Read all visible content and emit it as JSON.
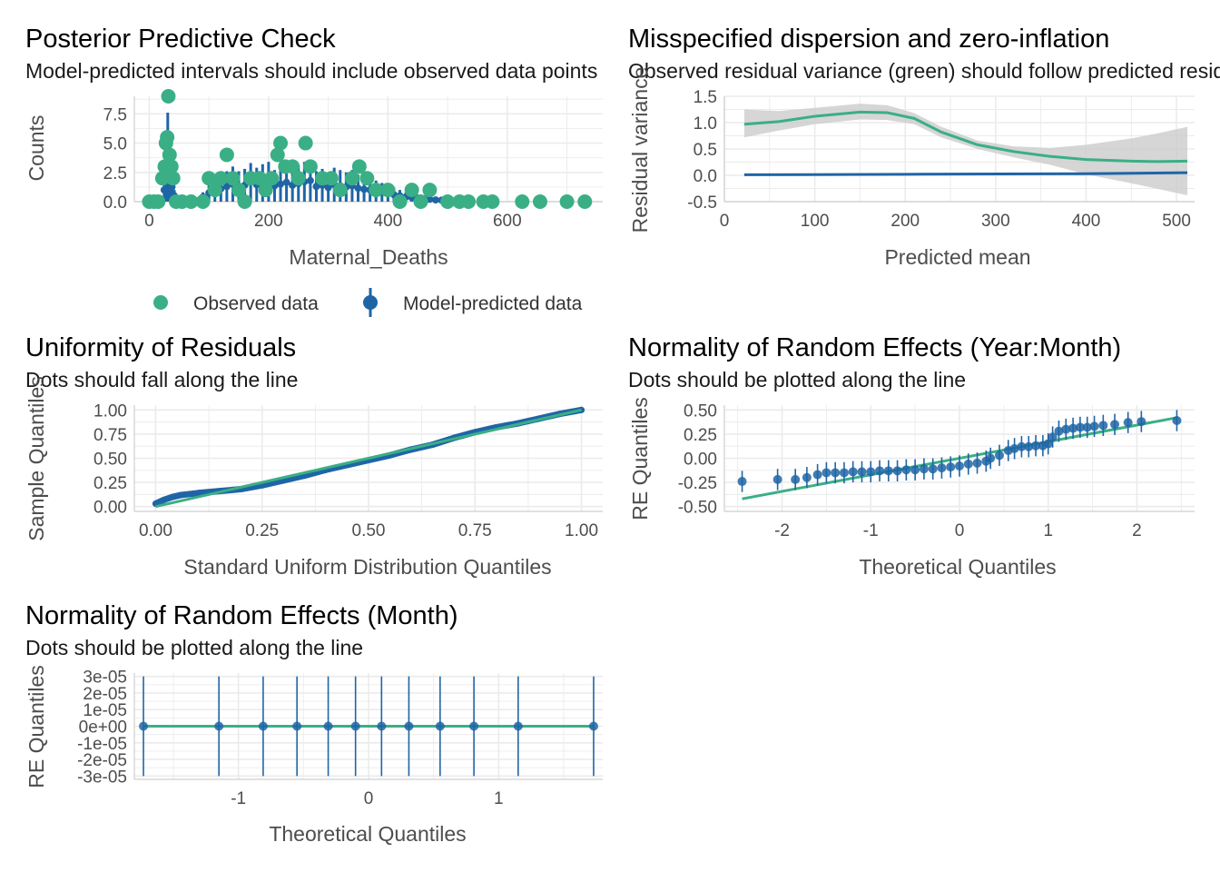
{
  "colors": {
    "observed": "#3aaf85",
    "predicted": "#1f65a6",
    "band": "#cccccc",
    "grid": "#ebebeb"
  },
  "panels": {
    "ppc": {
      "title": "Posterior Predictive Check",
      "subtitle": "Model-predicted intervals should include observed data points",
      "xlabel": "Maternal_Deaths",
      "ylabel": "Counts",
      "legend": {
        "observed": "Observed data",
        "predicted": "Model-predicted data"
      }
    },
    "disp": {
      "title": "Misspecified dispersion and zero-inflation",
      "subtitle": "Observed residual variance (green) should follow predicted residual variance (blue)",
      "xlabel": "Predicted mean",
      "ylabel": "Residual variance"
    },
    "unif": {
      "title": "Uniformity of Residuals",
      "subtitle": "Dots should fall along the line",
      "xlabel": "Standard Uniform Distribution Quantiles",
      "ylabel": "Sample Quantiles"
    },
    "re_ym": {
      "title": "Normality of Random Effects (Year:Month)",
      "subtitle": "Dots should be plotted along the line",
      "xlabel": "Theoretical Quantiles",
      "ylabel": "RE Quantiles"
    },
    "re_m": {
      "title": "Normality of Random Effects (Month)",
      "subtitle": "Dots should be plotted along the line",
      "xlabel": "Theoretical Quantiles",
      "ylabel": "RE Quantiles"
    }
  },
  "chart_data": [
    {
      "id": "ppc",
      "type": "scatter",
      "xlim": [
        -25,
        760
      ],
      "ylim": [
        0,
        9.0
      ],
      "xticks": [
        "0",
        "200",
        "400",
        "600"
      ],
      "xtick_values": [
        0,
        200,
        400,
        600
      ],
      "yticks": [
        "0.0",
        "2.5",
        "5.0",
        "7.5"
      ],
      "ytick_values": [
        0,
        2.5,
        5.0,
        7.5
      ],
      "legend_position": "bottom",
      "observed": [
        [
          0,
          0
        ],
        [
          8,
          0
        ],
        [
          15,
          0
        ],
        [
          22,
          2
        ],
        [
          26,
          3
        ],
        [
          28,
          5
        ],
        [
          30,
          5.5
        ],
        [
          32,
          9
        ],
        [
          34,
          4
        ],
        [
          37,
          3
        ],
        [
          40,
          2
        ],
        [
          45,
          0
        ],
        [
          55,
          0
        ],
        [
          70,
          0
        ],
        [
          90,
          0
        ],
        [
          100,
          2
        ],
        [
          110,
          1
        ],
        [
          120,
          2
        ],
        [
          130,
          4
        ],
        [
          140,
          2
        ],
        [
          150,
          1
        ],
        [
          160,
          0
        ],
        [
          170,
          2
        ],
        [
          185,
          2
        ],
        [
          195,
          1
        ],
        [
          205,
          2
        ],
        [
          215,
          4
        ],
        [
          220,
          5
        ],
        [
          228,
          3
        ],
        [
          240,
          3
        ],
        [
          250,
          2
        ],
        [
          262,
          5
        ],
        [
          270,
          3
        ],
        [
          290,
          2
        ],
        [
          305,
          2
        ],
        [
          320,
          1
        ],
        [
          340,
          2
        ],
        [
          352,
          3
        ],
        [
          365,
          2
        ],
        [
          380,
          1
        ],
        [
          400,
          1
        ],
        [
          420,
          0
        ],
        [
          440,
          1
        ],
        [
          455,
          0
        ],
        [
          470,
          1
        ],
        [
          500,
          0
        ],
        [
          520,
          0
        ],
        [
          535,
          0
        ],
        [
          560,
          0
        ],
        [
          575,
          0
        ],
        [
          625,
          0
        ],
        [
          655,
          0
        ],
        [
          700,
          0
        ],
        [
          730,
          0
        ]
      ],
      "predicted": [
        [
          22,
          0.3
        ],
        [
          25,
          2
        ],
        [
          27,
          3.5
        ],
        [
          29,
          5
        ],
        [
          31,
          7.6
        ],
        [
          33,
          6
        ],
        [
          35,
          4
        ],
        [
          38,
          2.5
        ],
        [
          42,
          1
        ],
        [
          50,
          0.5
        ],
        [
          70,
          0.3
        ],
        [
          90,
          0.8
        ],
        [
          100,
          1.5
        ],
        [
          110,
          1.8
        ],
        [
          120,
          2.2
        ],
        [
          130,
          2.6
        ],
        [
          140,
          3.0
        ],
        [
          150,
          2.6
        ],
        [
          160,
          2.8
        ],
        [
          170,
          3.3
        ],
        [
          180,
          2.9
        ],
        [
          190,
          3.2
        ],
        [
          200,
          3.4
        ],
        [
          210,
          2.7
        ],
        [
          220,
          3.0
        ],
        [
          230,
          3.3
        ],
        [
          240,
          2.8
        ],
        [
          250,
          3.1
        ],
        [
          260,
          3.4
        ],
        [
          270,
          3.6
        ],
        [
          280,
          2.6
        ],
        [
          290,
          2.8
        ],
        [
          300,
          2.4
        ],
        [
          310,
          2.9
        ],
        [
          320,
          2.7
        ],
        [
          330,
          2.5
        ],
        [
          340,
          2.7
        ],
        [
          350,
          2.3
        ],
        [
          360,
          2.1
        ],
        [
          370,
          2.0
        ],
        [
          380,
          1.8
        ],
        [
          390,
          1.6
        ],
        [
          400,
          1.5
        ],
        [
          410,
          1.2
        ],
        [
          420,
          1.0
        ],
        [
          430,
          0.8
        ],
        [
          440,
          0.7
        ],
        [
          450,
          0.6
        ],
        [
          460,
          0.5
        ],
        [
          470,
          0.4
        ],
        [
          480,
          0.3
        ],
        [
          490,
          0.25
        ],
        [
          500,
          0.2
        ],
        [
          520,
          0.1
        ],
        [
          540,
          0.05
        ]
      ]
    },
    {
      "id": "disp",
      "type": "line",
      "xlim": [
        0,
        520
      ],
      "ylim": [
        -0.5,
        1.5
      ],
      "xticks": [
        "0",
        "100",
        "200",
        "300",
        "400",
        "500"
      ],
      "xtick_values": [
        0,
        100,
        200,
        300,
        400,
        500
      ],
      "yticks": [
        "-0.5",
        "0.0",
        "0.5",
        "1.0",
        "1.5"
      ],
      "ytick_values": [
        -0.5,
        0.0,
        0.5,
        1.0,
        1.5
      ],
      "observed_line": [
        [
          22,
          0.97
        ],
        [
          60,
          1.02
        ],
        [
          100,
          1.12
        ],
        [
          150,
          1.2
        ],
        [
          180,
          1.19
        ],
        [
          210,
          1.08
        ],
        [
          240,
          0.82
        ],
        [
          280,
          0.58
        ],
        [
          320,
          0.45
        ],
        [
          360,
          0.36
        ],
        [
          400,
          0.3
        ],
        [
          450,
          0.27
        ],
        [
          480,
          0.26
        ],
        [
          512,
          0.27
        ]
      ],
      "band_upper": [
        [
          22,
          1.25
        ],
        [
          60,
          1.22
        ],
        [
          100,
          1.28
        ],
        [
          150,
          1.36
        ],
        [
          180,
          1.33
        ],
        [
          210,
          1.18
        ],
        [
          240,
          0.92
        ],
        [
          280,
          0.66
        ],
        [
          320,
          0.55
        ],
        [
          360,
          0.52
        ],
        [
          400,
          0.58
        ],
        [
          450,
          0.7
        ],
        [
          480,
          0.8
        ],
        [
          512,
          0.92
        ]
      ],
      "band_lower": [
        [
          22,
          0.72
        ],
        [
          60,
          0.85
        ],
        [
          100,
          0.97
        ],
        [
          150,
          1.06
        ],
        [
          180,
          1.05
        ],
        [
          210,
          0.97
        ],
        [
          240,
          0.72
        ],
        [
          280,
          0.5
        ],
        [
          320,
          0.34
        ],
        [
          360,
          0.2
        ],
        [
          400,
          0.02
        ],
        [
          450,
          -0.15
        ],
        [
          480,
          -0.26
        ],
        [
          512,
          -0.38
        ]
      ],
      "predicted_line": [
        [
          22,
          0.01
        ],
        [
          200,
          0.02
        ],
        [
          400,
          0.03
        ],
        [
          512,
          0.05
        ]
      ]
    },
    {
      "id": "unif",
      "type": "scatter",
      "xlim": [
        -0.05,
        1.05
      ],
      "ylim": [
        -0.05,
        1.05
      ],
      "xticks": [
        "0.00",
        "0.25",
        "0.50",
        "0.75",
        "1.00"
      ],
      "xtick_values": [
        0,
        0.25,
        0.5,
        0.75,
        1.0
      ],
      "yticks": [
        "0.00",
        "0.25",
        "0.50",
        "0.75",
        "1.00"
      ],
      "ytick_values": [
        0,
        0.25,
        0.5,
        0.75,
        1.0
      ],
      "line": [
        [
          0,
          0
        ],
        [
          1,
          1
        ]
      ],
      "sample": [
        [
          0,
          0.03
        ],
        [
          0.01,
          0.05
        ],
        [
          0.02,
          0.07
        ],
        [
          0.04,
          0.1
        ],
        [
          0.06,
          0.12
        ],
        [
          0.1,
          0.14
        ],
        [
          0.15,
          0.16
        ],
        [
          0.2,
          0.18
        ],
        [
          0.25,
          0.22
        ],
        [
          0.3,
          0.27
        ],
        [
          0.35,
          0.32
        ],
        [
          0.4,
          0.38
        ],
        [
          0.45,
          0.43
        ],
        [
          0.5,
          0.48
        ],
        [
          0.55,
          0.53
        ],
        [
          0.6,
          0.59
        ],
        [
          0.65,
          0.64
        ],
        [
          0.7,
          0.71
        ],
        [
          0.75,
          0.77
        ],
        [
          0.8,
          0.82
        ],
        [
          0.85,
          0.86
        ],
        [
          0.9,
          0.91
        ],
        [
          0.95,
          0.96
        ],
        [
          1.0,
          1.0
        ]
      ]
    },
    {
      "id": "re_ym",
      "type": "scatter",
      "xlim": [
        -2.65,
        2.65
      ],
      "ylim": [
        -0.55,
        0.55
      ],
      "xticks": [
        "-2",
        "-1",
        "0",
        "1",
        "2"
      ],
      "xtick_values": [
        -2,
        -1,
        0,
        1,
        2
      ],
      "yticks": [
        "-0.50",
        "-0.25",
        "0.00",
        "0.25",
        "0.50"
      ],
      "ytick_values": [
        -0.5,
        -0.25,
        0,
        0.25,
        0.5
      ],
      "line": [
        [
          -2.45,
          -0.42
        ],
        [
          2.45,
          0.42
        ]
      ],
      "points": [
        [
          -2.45,
          -0.24
        ],
        [
          -2.05,
          -0.22
        ],
        [
          -1.85,
          -0.22
        ],
        [
          -1.72,
          -0.2
        ],
        [
          -1.6,
          -0.17
        ],
        [
          -1.5,
          -0.15
        ],
        [
          -1.4,
          -0.15
        ],
        [
          -1.3,
          -0.15
        ],
        [
          -1.2,
          -0.14
        ],
        [
          -1.1,
          -0.14
        ],
        [
          -1.0,
          -0.14
        ],
        [
          -0.9,
          -0.13
        ],
        [
          -0.8,
          -0.13
        ],
        [
          -0.7,
          -0.13
        ],
        [
          -0.6,
          -0.12
        ],
        [
          -0.5,
          -0.12
        ],
        [
          -0.4,
          -0.11
        ],
        [
          -0.3,
          -0.11
        ],
        [
          -0.2,
          -0.1
        ],
        [
          -0.1,
          -0.09
        ],
        [
          0.0,
          -0.08
        ],
        [
          0.1,
          -0.06
        ],
        [
          0.2,
          -0.05
        ],
        [
          0.3,
          -0.03
        ],
        [
          0.35,
          0.0
        ],
        [
          0.45,
          0.03
        ],
        [
          0.55,
          0.08
        ],
        [
          0.62,
          0.1
        ],
        [
          0.7,
          0.12
        ],
        [
          0.78,
          0.12
        ],
        [
          0.86,
          0.13
        ],
        [
          0.94,
          0.13
        ],
        [
          1.0,
          0.15
        ],
        [
          1.05,
          0.22
        ],
        [
          1.12,
          0.28
        ],
        [
          1.2,
          0.3
        ],
        [
          1.28,
          0.31
        ],
        [
          1.36,
          0.32
        ],
        [
          1.44,
          0.32
        ],
        [
          1.52,
          0.33
        ],
        [
          1.62,
          0.34
        ],
        [
          1.75,
          0.35
        ],
        [
          1.9,
          0.37
        ],
        [
          2.05,
          0.38
        ],
        [
          2.45,
          0.39
        ]
      ],
      "err": 0.11
    },
    {
      "id": "re_m",
      "type": "scatter",
      "xlim": [
        -1.8,
        1.8
      ],
      "ylim": [
        -3.2e-05,
        3.2e-05
      ],
      "xticks": [
        "-1",
        "0",
        "1"
      ],
      "xtick_values": [
        -1,
        0,
        1
      ],
      "yticks": [
        "3e-05",
        "2e-05",
        "1e-05",
        "0e+00",
        "-1e-05",
        "-2e-05",
        "-3e-05"
      ],
      "ytick_values": [
        3e-05,
        2e-05,
        1e-05,
        0,
        -1e-05,
        -2e-05,
        -3e-05
      ],
      "line": [
        [
          -1.73,
          0
        ],
        [
          1.73,
          0
        ]
      ],
      "points": [
        [
          -1.73,
          0
        ],
        [
          -1.15,
          0
        ],
        [
          -0.81,
          0
        ],
        [
          -0.55,
          0
        ],
        [
          -0.31,
          0
        ],
        [
          -0.1,
          0
        ],
        [
          0.1,
          0
        ],
        [
          0.31,
          0
        ],
        [
          0.55,
          0
        ],
        [
          0.81,
          0
        ],
        [
          1.15,
          0
        ],
        [
          1.73,
          0
        ]
      ],
      "err": 3e-05
    }
  ]
}
